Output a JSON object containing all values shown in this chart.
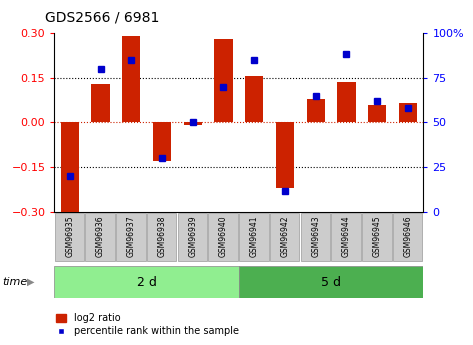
{
  "title": "GDS2566 / 6981",
  "samples": [
    "GSM96935",
    "GSM96936",
    "GSM96937",
    "GSM96938",
    "GSM96939",
    "GSM96940",
    "GSM96941",
    "GSM96942",
    "GSM96943",
    "GSM96944",
    "GSM96945",
    "GSM96946"
  ],
  "log2_ratio": [
    -0.3,
    0.13,
    0.29,
    -0.13,
    -0.01,
    0.28,
    0.155,
    -0.22,
    0.08,
    0.135,
    0.06,
    0.065
  ],
  "pct_rank": [
    20,
    80,
    85,
    30,
    50,
    70,
    85,
    12,
    65,
    88,
    62,
    58
  ],
  "groups": [
    {
      "label": "2 d",
      "start": 0,
      "end": 6,
      "color": "#90EE90"
    },
    {
      "label": "5 d",
      "start": 6,
      "end": 12,
      "color": "#4CAF50"
    }
  ],
  "bar_color": "#CC2200",
  "dot_color": "#0000CC",
  "ylim_left": [
    -0.3,
    0.3
  ],
  "ylim_right": [
    0,
    100
  ],
  "yticks_left": [
    -0.3,
    -0.15,
    0.0,
    0.15,
    0.3
  ],
  "yticks_right_vals": [
    0,
    25,
    50,
    75,
    100
  ],
  "yticks_right_labels": [
    "0",
    "25",
    "50",
    "75",
    "100%"
  ],
  "dotted_lines": [
    -0.15,
    0.0,
    0.15
  ],
  "zero_line_color": "#CC2200",
  "sample_box_color": "#CCCCCC",
  "time_label": "time",
  "legend_log2": "log2 ratio",
  "legend_pct": "percentile rank within the sample"
}
